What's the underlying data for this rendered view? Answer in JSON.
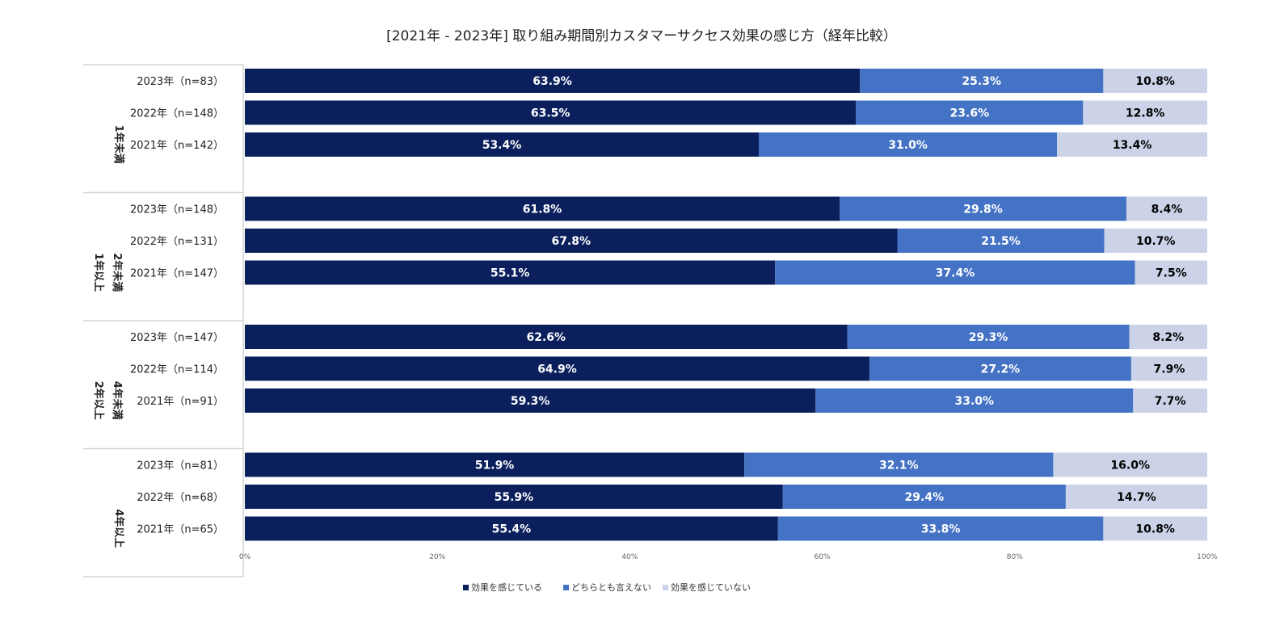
{
  "chart_data": {
    "type": "bar",
    "orientation": "horizontal",
    "stacked": "percent",
    "title": "[2021年 - 2023年] 取り組み期間別カスタマーサクセス効果の感じ方（経年比較）",
    "xlim": [
      0,
      100
    ],
    "x_ticks": [
      "0%",
      "20%",
      "40%",
      "60%",
      "80%",
      "100%"
    ],
    "legend_position": "bottom",
    "series": [
      {
        "name": "効果を感じている",
        "color": "#0b1f5c",
        "label_color": "#ffffff"
      },
      {
        "name": "どちらとも言えない",
        "color": "#4472c4",
        "label_color": "#ffffff"
      },
      {
        "name": "効果を感じていない",
        "color": "#ccd3e8",
        "label_color": "#000000"
      }
    ],
    "groups": [
      {
        "label_lines": [
          "1年未満"
        ],
        "rows": [
          {
            "label": "2023年（n=83）",
            "values": [
              63.9,
              25.3,
              10.8
            ],
            "value_labels": [
              "63.9%",
              "25.3%",
              "10.8%"
            ]
          },
          {
            "label": "2022年（n=148）",
            "values": [
              63.5,
              23.6,
              12.8
            ],
            "value_labels": [
              "63.5%",
              "23.6%",
              "12.8%"
            ]
          },
          {
            "label": "2021年（n=142）",
            "values": [
              53.4,
              31.0,
              13.4
            ],
            "value_labels": [
              "53.4%",
              "31.0%",
              "13.4%"
            ]
          }
        ]
      },
      {
        "label_lines": [
          "1年以上",
          "2年未満"
        ],
        "rows": [
          {
            "label": "2023年（n=148）",
            "values": [
              61.8,
              29.8,
              8.4
            ],
            "value_labels": [
              "61.8%",
              "29.8%",
              "8.4%"
            ]
          },
          {
            "label": "2022年（n=131）",
            "values": [
              67.8,
              21.5,
              10.7
            ],
            "value_labels": [
              "67.8%",
              "21.5%",
              "10.7%"
            ]
          },
          {
            "label": "2021年（n=147）",
            "values": [
              55.1,
              37.4,
              7.5
            ],
            "value_labels": [
              "55.1%",
              "37.4%",
              "7.5%"
            ]
          }
        ]
      },
      {
        "label_lines": [
          "2年以上",
          "4年未満"
        ],
        "rows": [
          {
            "label": "2023年（n=147）",
            "values": [
              62.6,
              29.3,
              8.2
            ],
            "value_labels": [
              "62.6%",
              "29.3%",
              "8.2%"
            ]
          },
          {
            "label": "2022年（n=114）",
            "values": [
              64.9,
              27.2,
              7.9
            ],
            "value_labels": [
              "64.9%",
              "27.2%",
              "7.9%"
            ]
          },
          {
            "label": "2021年（n=91）",
            "values": [
              59.3,
              33.0,
              7.7
            ],
            "value_labels": [
              "59.3%",
              "33.0%",
              "7.7%"
            ]
          }
        ]
      },
      {
        "label_lines": [
          "4年以上"
        ],
        "rows": [
          {
            "label": "2023年（n=81）",
            "values": [
              51.9,
              32.1,
              16.0
            ],
            "value_labels": [
              "51.9%",
              "32.1%",
              "16.0%"
            ]
          },
          {
            "label": "2022年（n=68）",
            "values": [
              55.9,
              29.4,
              14.7
            ],
            "value_labels": [
              "55.9%",
              "29.4%",
              "14.7%"
            ]
          },
          {
            "label": "2021年（n=65）",
            "values": [
              55.4,
              33.8,
              10.8
            ],
            "value_labels": [
              "55.4%",
              "33.8%",
              "10.8%"
            ]
          }
        ]
      }
    ]
  }
}
